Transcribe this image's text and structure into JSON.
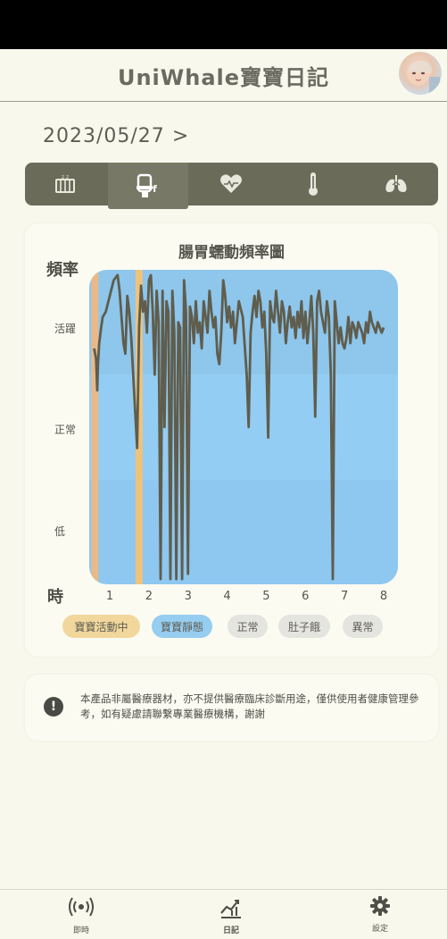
{
  "header": {
    "title": "UniWhale寶寶日記"
  },
  "date_selector": {
    "date": "2023/05/27",
    "arrow": ">"
  },
  "tabs": [
    {
      "icon": "crib-icon",
      "active": false
    },
    {
      "icon": "diaper-icon",
      "active": true
    },
    {
      "icon": "heart-rate-icon",
      "active": false
    },
    {
      "icon": "thermometer-icon",
      "active": false
    },
    {
      "icon": "lungs-icon",
      "active": false
    }
  ],
  "chart": {
    "title": "腸胃蠕動頻率圖",
    "ylabel": "頻率",
    "xlabel": "時"
  },
  "chart_data": {
    "type": "line",
    "title": "腸胃蠕動頻率圖",
    "ylabel": "頻率",
    "xlabel": "時",
    "y_categories": [
      "低",
      "正常",
      "活躍"
    ],
    "x_ticks": [
      "1",
      "2",
      "3",
      "4",
      "5",
      "6",
      "7",
      "8"
    ],
    "xlim": [
      0.6,
      8.0
    ],
    "ylim": [
      0,
      3
    ],
    "highlight_active_hours": [
      0.62,
      1.75
    ],
    "series": [
      {
        "x": [
          0.6,
          0.65,
          0.68,
          0.7,
          0.73,
          0.78,
          0.82,
          0.9,
          1.0,
          1.1,
          1.2,
          1.25,
          1.3,
          1.35,
          1.4,
          1.45,
          1.5,
          1.55,
          1.6,
          1.7,
          1.75,
          1.8,
          1.85,
          1.9,
          1.95,
          2.0,
          2.05,
          2.1,
          2.15,
          2.2,
          2.25,
          2.3,
          2.35,
          2.4,
          2.45,
          2.5,
          2.55,
          2.6,
          2.65,
          2.7,
          2.75,
          2.8,
          2.85,
          2.9,
          2.95,
          3.0,
          3.05,
          3.1,
          3.15,
          3.2,
          3.25,
          3.3,
          3.35,
          3.4,
          3.45,
          3.5,
          3.55,
          3.6,
          3.65,
          3.7,
          3.75,
          3.8,
          3.85,
          3.9,
          3.95,
          4.0,
          4.05,
          4.1,
          4.15,
          4.2,
          4.3,
          4.4,
          4.5,
          4.55,
          4.6,
          4.65,
          4.7,
          4.75,
          4.8,
          4.85,
          4.9,
          4.95,
          5.0,
          5.05,
          5.1,
          5.15,
          5.2,
          5.25,
          5.3,
          5.35,
          5.4,
          5.45,
          5.5,
          5.55,
          5.6,
          5.65,
          5.7,
          5.75,
          5.8,
          5.85,
          5.9,
          5.95,
          6.0,
          6.05,
          6.1,
          6.15,
          6.2,
          6.25,
          6.3,
          6.35,
          6.4,
          6.45,
          6.5,
          6.55,
          6.6,
          6.65,
          6.7,
          6.75,
          6.8,
          6.85,
          6.9,
          6.95,
          7.0,
          7.05,
          7.1,
          7.15,
          7.2,
          7.25,
          7.3,
          7.35,
          7.4,
          7.45,
          7.5,
          7.55,
          7.6,
          7.65,
          7.7,
          7.75,
          7.8,
          7.85,
          7.9,
          7.95,
          8.0
        ],
        "y": [
          2.25,
          2.15,
          1.85,
          2.1,
          2.3,
          2.45,
          2.55,
          2.6,
          2.75,
          2.9,
          2.95,
          2.8,
          2.55,
          2.3,
          2.2,
          2.75,
          2.6,
          2.35,
          2.0,
          1.3,
          2.45,
          2.85,
          2.6,
          2.7,
          2.4,
          2.9,
          2.95,
          2.6,
          2.0,
          2.8,
          2.5,
          0.05,
          2.8,
          1.5,
          2.7,
          2.6,
          0.05,
          2.8,
          2.4,
          0.05,
          2.5,
          2.45,
          0.05,
          2.9,
          2.6,
          0.1,
          2.65,
          2.55,
          2.3,
          2.7,
          2.4,
          2.5,
          2.25,
          2.7,
          2.55,
          2.4,
          2.8,
          2.6,
          2.45,
          2.55,
          2.2,
          2.1,
          2.4,
          2.9,
          2.75,
          2.5,
          2.65,
          2.45,
          2.6,
          2.3,
          2.7,
          2.55,
          2.0,
          1.5,
          2.4,
          2.6,
          2.75,
          2.55,
          2.8,
          2.7,
          2.45,
          2.6,
          2.2,
          1.4,
          2.7,
          2.55,
          2.5,
          2.8,
          2.6,
          2.4,
          2.7,
          2.6,
          2.3,
          2.5,
          2.65,
          2.45,
          2.55,
          2.35,
          2.6,
          2.45,
          2.7,
          2.35,
          2.6,
          2.3,
          2.5,
          2.75,
          2.4,
          1.6,
          2.7,
          2.8,
          2.6,
          2.5,
          2.4,
          2.7,
          2.55,
          2.0,
          0.05,
          2.7,
          2.5,
          2.3,
          2.45,
          2.3,
          2.25,
          2.35,
          2.55,
          2.3,
          2.5,
          2.45,
          2.35,
          2.5,
          2.45,
          2.4,
          2.3,
          2.5,
          2.4,
          2.6,
          2.5,
          2.45,
          2.4,
          2.5,
          2.45,
          2.4,
          2.45
        ]
      }
    ]
  },
  "legend": [
    {
      "label": "寶寶活動中",
      "bg": "#f2d79c",
      "fg": "#5e5e55"
    },
    {
      "label": "寶寶靜態",
      "bg": "#96cdf0",
      "fg": "#5e5e55"
    },
    {
      "label": "正常",
      "bg": "#e5e5df",
      "fg": "#5e5e55"
    },
    {
      "label": "肚子餓",
      "bg": "#e5e5df",
      "fg": "#5e5e55"
    },
    {
      "label": "異常",
      "bg": "#e5e5df",
      "fg": "#5e5e55"
    }
  ],
  "notice": {
    "icon": "exclamation-icon",
    "text": "本產品非屬醫療器材，亦不提供醫療臨床診斷用途，僅供使用者健康管理參考，如有疑慮請聯繫專業醫療機構，謝謝"
  },
  "bottom_nav": [
    {
      "icon": "realtime-icon",
      "label": "即時"
    },
    {
      "icon": "diary-icon",
      "label": "日記"
    },
    {
      "icon": "settings-icon",
      "label": "設定"
    }
  ]
}
